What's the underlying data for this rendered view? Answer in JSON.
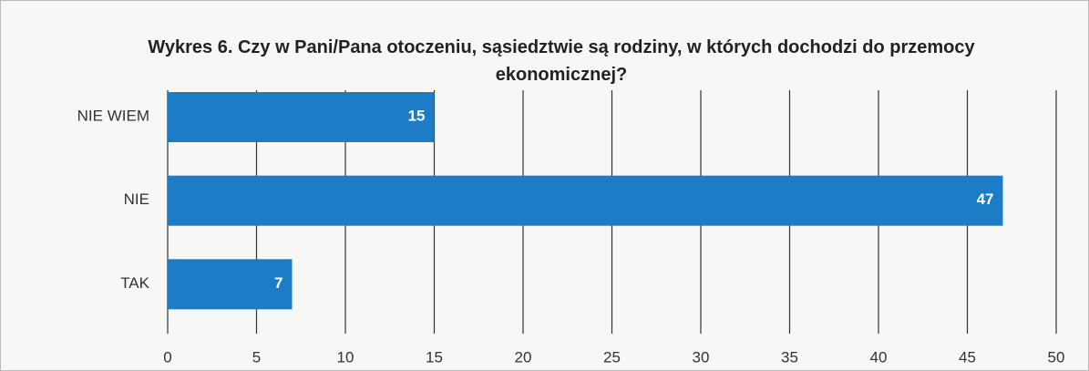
{
  "chart_data": {
    "type": "hbar",
    "title": "Wykres 6. Czy w Pani/Pana otoczeniu, sąsiedztwie są rodziny, w których dochodzi do przemocy ekonomicznej?",
    "categories": [
      "NIE WIEM",
      "NIE",
      "TAK"
    ],
    "values": [
      15,
      47,
      7
    ],
    "color": "#1d7cc6",
    "xlim": [
      0,
      50
    ],
    "xticks": [
      0,
      5,
      10,
      15,
      20,
      25,
      30,
      35,
      40,
      45,
      50
    ],
    "grid": true
  }
}
